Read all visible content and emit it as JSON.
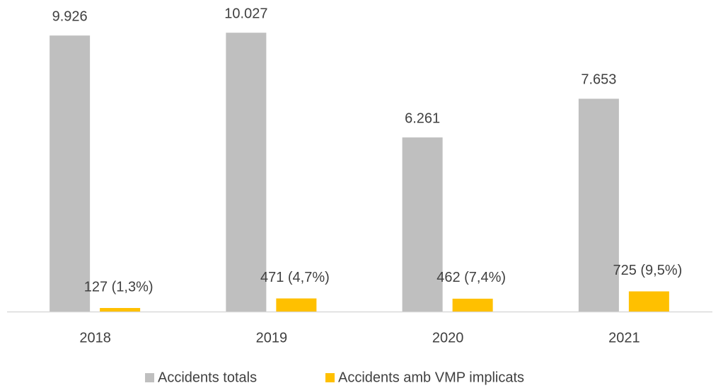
{
  "chart_data": {
    "type": "bar",
    "categories": [
      "2018",
      "2019",
      "2020",
      "2021"
    ],
    "series": [
      {
        "name": "Accidents totals",
        "color": "#bfbfbf",
        "values": [
          9926,
          10027,
          6261,
          7653
        ],
        "value_labels": [
          "9.926",
          "10.027",
          "6.261",
          "7.653"
        ]
      },
      {
        "name": "Accidents amb VMP implicats",
        "color": "#ffc000",
        "values": [
          127,
          471,
          462,
          725
        ],
        "value_labels": [
          "127 (1,3%)",
          "471 (4,7%)",
          "462 (7,4%)",
          "725 (9,5%)"
        ]
      }
    ],
    "ylim": [
      0,
      11000
    ],
    "legend": "bottom"
  }
}
